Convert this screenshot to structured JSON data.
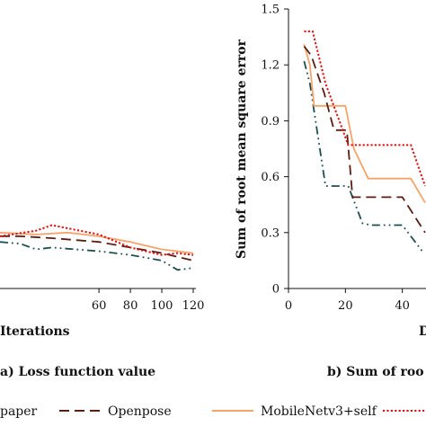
{
  "chart_data": [
    {
      "type": "line",
      "xlabel": "Iterations",
      "ylabel": "",
      "caption": "a) Loss function value",
      "x_ticks": [
        "60",
        "80",
        "100",
        "120"
      ],
      "xlim": [
        -3,
        120
      ],
      "series": [
        {
          "name": "This paper",
          "color": "#dd1111",
          "dash": "dotted",
          "x": [
            -3,
            20,
            30,
            60,
            80,
            100,
            110,
            120
          ],
          "y": [
            0.28,
            0.31,
            0.34,
            0.29,
            0.22,
            0.18,
            0.19,
            0.18
          ]
        },
        {
          "name": "Openpose",
          "color": "#5a1e12",
          "dash": "long-dash",
          "x": [
            -3,
            10,
            30,
            60,
            80,
            100,
            120
          ],
          "y": [
            0.28,
            0.28,
            0.27,
            0.25,
            0.22,
            0.19,
            0.15
          ]
        },
        {
          "name": "MobileNetv3+self",
          "color": "#f4a46a",
          "dash": "solid",
          "x": [
            -3,
            20,
            40,
            60,
            80,
            100,
            110,
            120
          ],
          "y": [
            0.3,
            0.29,
            0.3,
            0.28,
            0.25,
            0.21,
            0.2,
            0.19
          ]
        },
        {
          "name": "",
          "color": "#1f4e4e",
          "dash": "dash-dot-dot",
          "x": [
            -3,
            10,
            20,
            30,
            60,
            80,
            100,
            110,
            120
          ],
          "y": [
            0.25,
            0.24,
            0.21,
            0.22,
            0.2,
            0.18,
            0.15,
            0.1,
            0.11
          ]
        }
      ]
    },
    {
      "type": "line",
      "xlabel": "D",
      "ylabel": "Sum of root mean square error",
      "caption": "b) Sum of roo",
      "x_ticks": [
        "0",
        "20",
        "40"
      ],
      "y_ticks": [
        "0",
        "0.3",
        "0.6",
        "0.9",
        "1.2",
        "1.5"
      ],
      "xlim": [
        0,
        48
      ],
      "ylim": [
        0,
        1.5
      ],
      "series": [
        {
          "name": "This paper",
          "color": "#dd1111",
          "dash": "dotted",
          "x": [
            5.5,
            8.5,
            13,
            21,
            28,
            35,
            43,
            48
          ],
          "y": [
            1.38,
            1.38,
            1.1,
            0.77,
            0.77,
            0.77,
            0.77,
            0.55
          ]
        },
        {
          "name": "Openpose",
          "color": "#5a1e12",
          "dash": "long-dash",
          "x": [
            5.5,
            8,
            12.5,
            16,
            20.5,
            22.5,
            26,
            30,
            40,
            48
          ],
          "y": [
            1.3,
            1.25,
            1.05,
            0.85,
            0.85,
            0.49,
            0.49,
            0.49,
            0.49,
            0.3
          ]
        },
        {
          "name": "MobileNetv3+self",
          "color": "#f4a46a",
          "dash": "solid",
          "x": [
            5.5,
            7.5,
            9,
            20,
            23,
            28,
            32,
            43,
            48
          ],
          "y": [
            1.31,
            1.2,
            0.98,
            0.98,
            0.75,
            0.59,
            0.59,
            0.59,
            0.46
          ]
        },
        {
          "name": "",
          "color": "#1f4e4e",
          "dash": "dash-dot-dot",
          "x": [
            5.5,
            7.5,
            10.5,
            13,
            21,
            26,
            29,
            35,
            40,
            47
          ],
          "y": [
            1.22,
            1.1,
            0.8,
            0.55,
            0.55,
            0.35,
            0.34,
            0.34,
            0.34,
            0.2
          ]
        }
      ]
    }
  ],
  "legend": [
    {
      "label": "paper",
      "color": "#dd1111",
      "dash": "dotted",
      "show_swatch": false
    },
    {
      "label": "Openpose",
      "color": "#5a1e12",
      "dash": "long-dash",
      "show_swatch": true
    },
    {
      "label": "MobileNetv3+self",
      "color": "#f4a46a",
      "dash": "solid",
      "show_swatch": true
    },
    {
      "label": "",
      "color": "#dd1111",
      "dash": "dotted",
      "show_swatch": true
    }
  ]
}
